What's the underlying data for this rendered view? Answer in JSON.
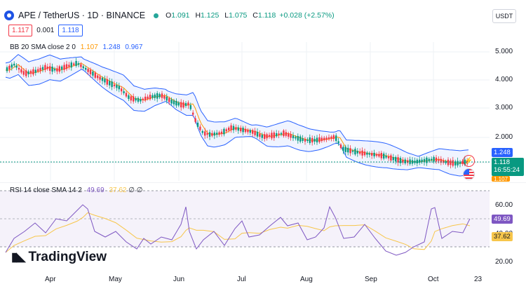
{
  "header": {
    "symbol": "APE / TetherUS · 1D · BINANCE",
    "ohlc": {
      "open_key": "O",
      "open": "1.091",
      "high_key": "H",
      "high": "1.125",
      "low_key": "L",
      "low": "1.075",
      "close_key": "C",
      "close": "1.118"
    },
    "change": "+0.028 (+2.57%)",
    "currency_button": "USDT",
    "icon": "symbol-icon"
  },
  "trade": {
    "sell": "1.117",
    "spread": "0.001",
    "buy": "1.118"
  },
  "bb_legend": {
    "label": "BB 20 SMA close 2 0",
    "basis": "1.107",
    "upper": "1.248",
    "lower": "0.967"
  },
  "rsi_legend": {
    "label": "RSI 14 close SMA 14 2",
    "rsi": "49.69",
    "sma": "37.62",
    "extra": "∅ ∅"
  },
  "price_axis": [
    "5.000",
    "4.000",
    "3.000",
    "2.000"
  ],
  "price_tags": {
    "upper": "1.248",
    "last": "1.118",
    "countdown": "16:55:24",
    "basis": "1.107"
  },
  "rsi_axis": [
    "60.00",
    "40.00",
    "20.00"
  ],
  "rsi_tags": {
    "rsi": "49.69",
    "sma": "37.62"
  },
  "x_axis": [
    "Apr",
    "May",
    "Jun",
    "Jul",
    "Aug",
    "Sep",
    "Oct",
    "23"
  ],
  "brand": {
    "name": "TradingView"
  },
  "colors": {
    "up": "#089981",
    "down": "#f23645",
    "basis": "#ff9800",
    "band": "#2962ff",
    "rsi": "#7e57c2",
    "rsi_sma": "#f7c64b"
  }
}
